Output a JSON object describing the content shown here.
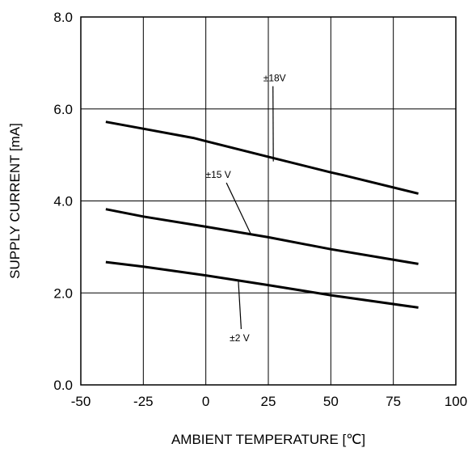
{
  "chart_data": {
    "type": "line",
    "xlabel": "AMBIENT TEMPERATURE [℃]",
    "ylabel": "SUPPLY CURRENT [mA]",
    "xlim": [
      -50,
      100
    ],
    "ylim": [
      0,
      8
    ],
    "grid": true,
    "xticks": [
      "-50",
      "-25",
      "0",
      "25",
      "50",
      "75",
      "100"
    ],
    "yticks": [
      "0.0",
      "2.0",
      "4.0",
      "6.0",
      "8.0"
    ],
    "series": [
      {
        "name": "±18V",
        "x": [
          -40,
          -25,
          -5,
          0,
          25,
          50,
          55,
          85
        ],
        "y": [
          5.72,
          5.57,
          5.37,
          5.3,
          4.96,
          4.62,
          4.56,
          4.16
        ]
      },
      {
        "name": "±15 V",
        "x": [
          -40,
          -25,
          0,
          25,
          50,
          85
        ],
        "y": [
          3.82,
          3.66,
          3.44,
          3.21,
          2.95,
          2.63
        ]
      },
      {
        "name": "±2 V",
        "x": [
          -40,
          -25,
          0,
          25,
          50,
          85
        ],
        "y": [
          2.67,
          2.57,
          2.38,
          2.17,
          1.95,
          1.68
        ]
      }
    ],
    "annotations": [
      {
        "text": "±18V",
        "x": 27.5,
        "y": 6.6,
        "point_x": 27,
        "point_y": 4.86
      },
      {
        "text": "±15 V",
        "x": 5,
        "y": 4.5,
        "point_x": 18,
        "point_y": 3.28
      },
      {
        "text": "±2 V",
        "x": 13.5,
        "y": 0.95,
        "point_x": 13,
        "point_y": 2.27
      }
    ]
  }
}
